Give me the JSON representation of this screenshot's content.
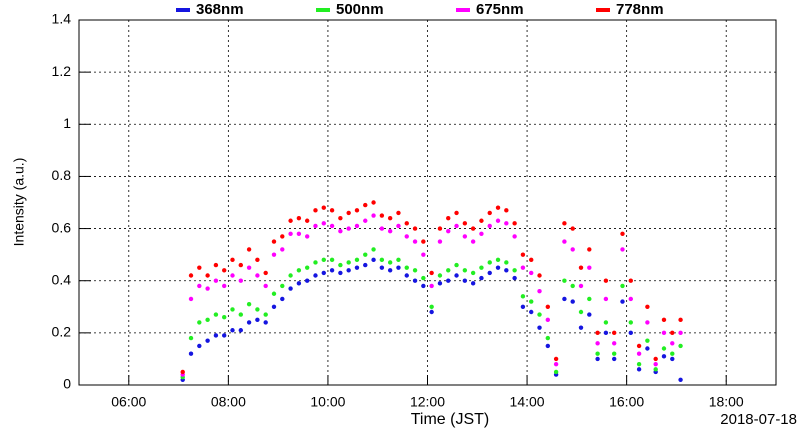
{
  "chart_data": {
    "type": "scatter",
    "x_label": "Time (JST)",
    "y_label": "Intensity (a.u.)",
    "date_label": "2018-07-18",
    "xlim": [
      "05:00",
      "19:00"
    ],
    "xticks": [
      "06:00",
      "08:00",
      "10:00",
      "12:00",
      "14:00",
      "16:00",
      "18:00"
    ],
    "ylim": [
      0,
      1.4
    ],
    "yticks": [
      0,
      0.2,
      0.4,
      0.6,
      0.8,
      1,
      1.2,
      1.4
    ],
    "grid": true,
    "legend": "top",
    "x": [
      "07:05",
      "07:15",
      "07:25",
      "07:35",
      "07:45",
      "07:55",
      "08:05",
      "08:15",
      "08:25",
      "08:35",
      "08:45",
      "08:55",
      "09:05",
      "09:15",
      "09:25",
      "09:35",
      "09:45",
      "09:55",
      "10:05",
      "10:15",
      "10:25",
      "10:35",
      "10:45",
      "10:55",
      "11:05",
      "11:15",
      "11:25",
      "11:35",
      "11:45",
      "11:55",
      "12:05",
      "12:15",
      "12:25",
      "12:35",
      "12:45",
      "12:55",
      "13:05",
      "13:15",
      "13:25",
      "13:35",
      "13:45",
      "13:55",
      "14:05",
      "14:15",
      "14:25",
      "14:35",
      "14:45",
      "14:55",
      "15:05",
      "15:15",
      "15:25",
      "15:35",
      "15:45",
      "15:55",
      "16:05",
      "16:15",
      "16:25",
      "16:35",
      "16:45",
      "16:55",
      "17:05"
    ],
    "series": [
      {
        "name": "368nm",
        "color": "#1515e0",
        "values": [
          0.02,
          0.12,
          0.15,
          0.17,
          0.19,
          0.19,
          0.21,
          0.21,
          0.24,
          0.25,
          0.24,
          0.3,
          0.33,
          0.37,
          0.39,
          0.4,
          0.42,
          0.43,
          0.44,
          0.43,
          0.44,
          0.45,
          0.46,
          0.48,
          0.45,
          0.44,
          0.45,
          0.42,
          0.4,
          0.38,
          0.28,
          0.39,
          0.4,
          0.42,
          0.4,
          0.39,
          0.41,
          0.43,
          0.45,
          0.44,
          0.41,
          0.3,
          0.28,
          0.22,
          0.15,
          0.04,
          0.33,
          0.32,
          0.22,
          0.27,
          0.1,
          0.2,
          0.1,
          0.32,
          0.2,
          0.06,
          0.14,
          0.05,
          0.11,
          0.1,
          0.02
        ]
      },
      {
        "name": "500nm",
        "color": "#22ee22",
        "values": [
          0.03,
          0.18,
          0.24,
          0.25,
          0.27,
          0.26,
          0.29,
          0.27,
          0.31,
          0.29,
          0.27,
          0.35,
          0.38,
          0.42,
          0.44,
          0.45,
          0.47,
          0.48,
          0.48,
          0.46,
          0.47,
          0.48,
          0.5,
          0.52,
          0.48,
          0.47,
          0.48,
          0.45,
          0.44,
          0.41,
          0.3,
          0.42,
          0.44,
          0.46,
          0.44,
          0.43,
          0.45,
          0.47,
          0.48,
          0.47,
          0.44,
          0.34,
          0.32,
          0.27,
          0.18,
          0.05,
          0.4,
          0.38,
          0.28,
          0.33,
          0.12,
          0.24,
          0.12,
          0.38,
          0.24,
          0.08,
          0.17,
          0.06,
          0.14,
          0.12,
          0.15
        ]
      },
      {
        "name": "675nm",
        "color": "#ff00ff",
        "values": [
          0.04,
          0.33,
          0.38,
          0.37,
          0.4,
          0.38,
          0.42,
          0.4,
          0.45,
          0.42,
          0.38,
          0.5,
          0.52,
          0.58,
          0.58,
          0.57,
          0.61,
          0.62,
          0.61,
          0.59,
          0.6,
          0.61,
          0.63,
          0.65,
          0.6,
          0.59,
          0.61,
          0.57,
          0.55,
          0.5,
          0.38,
          0.55,
          0.59,
          0.61,
          0.57,
          0.55,
          0.58,
          0.61,
          0.63,
          0.62,
          0.57,
          0.45,
          0.43,
          0.36,
          0.25,
          0.08,
          0.55,
          0.52,
          0.38,
          0.45,
          0.16,
          0.33,
          0.16,
          0.52,
          0.33,
          0.12,
          0.24,
          0.08,
          0.2,
          0.16,
          0.2
        ]
      },
      {
        "name": "778nm",
        "color": "#ff0000",
        "values": [
          0.05,
          0.42,
          0.45,
          0.42,
          0.46,
          0.44,
          0.48,
          0.46,
          0.52,
          0.48,
          0.43,
          0.55,
          0.57,
          0.63,
          0.64,
          0.63,
          0.67,
          0.68,
          0.67,
          0.64,
          0.66,
          0.67,
          0.69,
          0.7,
          0.65,
          0.64,
          0.66,
          0.62,
          0.6,
          0.55,
          0.43,
          0.6,
          0.64,
          0.66,
          0.62,
          0.6,
          0.63,
          0.66,
          0.68,
          0.67,
          0.62,
          0.5,
          0.48,
          0.42,
          0.3,
          0.1,
          0.62,
          0.6,
          0.45,
          0.52,
          0.2,
          0.4,
          0.2,
          0.58,
          0.4,
          0.15,
          0.3,
          0.1,
          0.25,
          0.2,
          0.25
        ]
      }
    ]
  }
}
